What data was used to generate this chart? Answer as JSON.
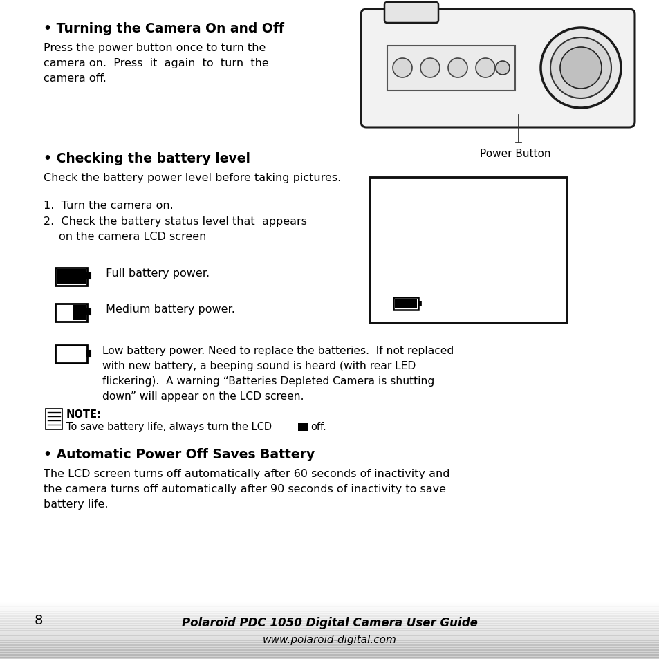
{
  "bg_color": "#ffffff",
  "page_number": "8",
  "footer_line1": "Polaroid PDC 1050 Digital Camera User Guide",
  "footer_line2": "www.polaroid-digital.com",
  "text_color": "#000000"
}
